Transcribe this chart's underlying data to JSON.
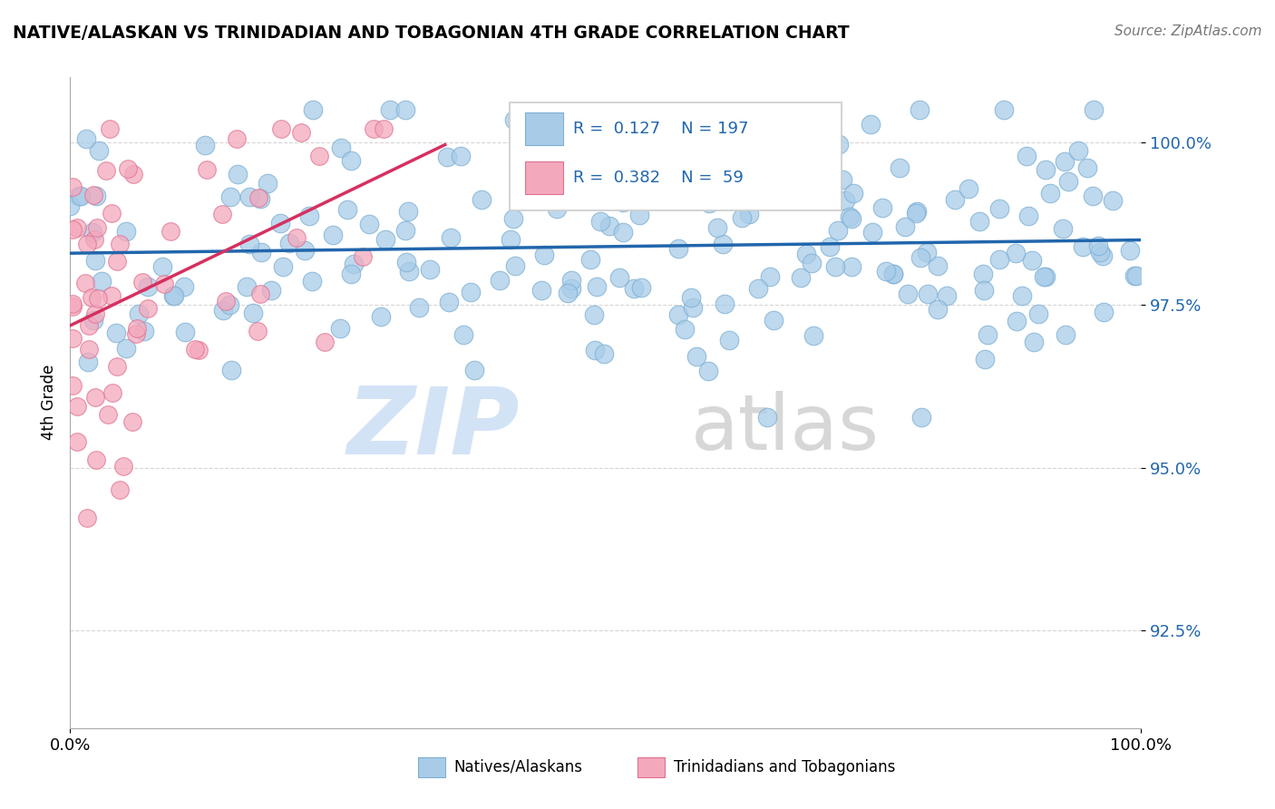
{
  "title": "NATIVE/ALASKAN VS TRINIDADIAN AND TOBAGONIAN 4TH GRADE CORRELATION CHART",
  "source": "Source: ZipAtlas.com",
  "ylabel": "4th Grade",
  "y_tick_labels": [
    "92.5%",
    "95.0%",
    "97.5%",
    "100.0%"
  ],
  "y_tick_values": [
    0.925,
    0.95,
    0.975,
    1.0
  ],
  "x_min": 0.0,
  "x_max": 1.0,
  "y_min": 0.91,
  "y_max": 1.01,
  "blue_R": 0.127,
  "blue_N": 197,
  "pink_R": 0.382,
  "pink_N": 59,
  "blue_color": "#a8cce8",
  "blue_edge_color": "#7bafd4",
  "blue_line_color": "#2166ac",
  "pink_color": "#f4a8bc",
  "pink_edge_color": "#e07090",
  "pink_line_color": "#d63060",
  "legend_label_blue": "Natives/Alaskans",
  "legend_label_pink": "Trinidadians and Tobagonians",
  "watermark_zip_color": "#ccdff5",
  "watermark_atlas_color": "#d0d0d0"
}
